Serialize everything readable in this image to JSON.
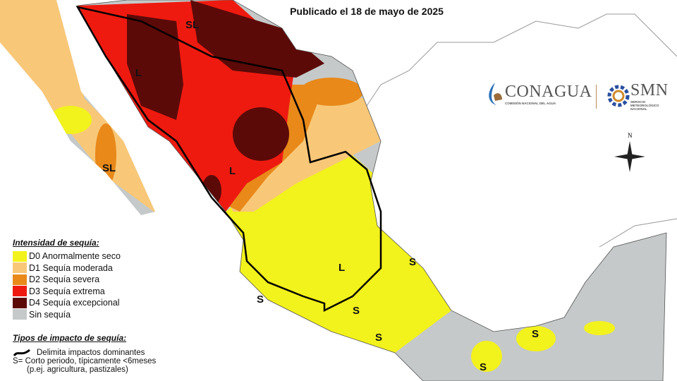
{
  "header": {
    "subtitle": "Publicado el 18 de mayo de 2025"
  },
  "legend": {
    "title": "Intensidad de sequía:",
    "items": [
      {
        "code": "D0",
        "label": "D0 Anormalmente seco",
        "color": "#f2f21c"
      },
      {
        "code": "D1",
        "label": "D1 Sequía moderada",
        "color": "#f8c878"
      },
      {
        "code": "D2",
        "label": "D2 Sequía severa",
        "color": "#e8891a"
      },
      {
        "code": "D3",
        "label": "D3 Sequía extrema",
        "color": "#ee1a10"
      },
      {
        "code": "D4",
        "label": "D4 Sequía excepcional",
        "color": "#5c0a08"
      },
      {
        "code": "none",
        "label": "Sin sequía",
        "color": "#c5c9c9"
      }
    ]
  },
  "impacts": {
    "title": "Tipos de impacto de sequía:",
    "line_label": "Delimita impactos dominantes",
    "s_label": "S= Corto periodo, típicamente <6meses",
    "s_example": "(p.ej. agricultura, pastizales)"
  },
  "map_labels": {
    "long_term": "L",
    "short_long": "SL",
    "short": "S"
  },
  "logos": {
    "conagua": "CONAGUA",
    "conagua_sub": "COMISIÓN NACIONAL DEL AGUA",
    "smn": "SMN",
    "smn_sub": "SERVICIO METEOROLÓGICO NACIONAL"
  },
  "compass": {
    "north": "N"
  }
}
